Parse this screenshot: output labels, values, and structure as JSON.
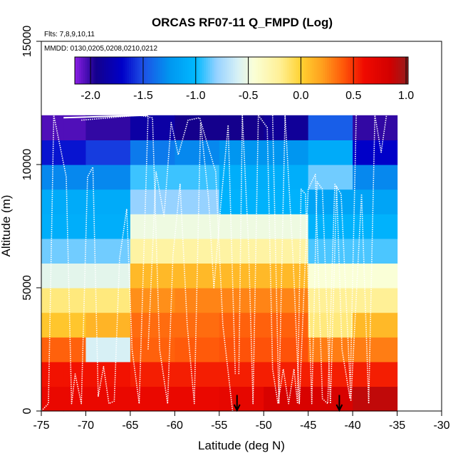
{
  "chart_data": {
    "type": "heatmap",
    "title": "ORCAS RF07-11 Q_FMPD (Log)",
    "notes": [
      "Flts: 7,8,9,10,11",
      "MMDD: 0130,0205,0208,0210,0212"
    ],
    "xlabel": "Latitude (deg N)",
    "ylabel": "Altitude (m)",
    "xlim": [
      -75,
      -30
    ],
    "ylim": [
      0,
      15000
    ],
    "x_ticks": [
      -75,
      -70,
      -65,
      -60,
      -55,
      -50,
      -45,
      -40,
      -35,
      -30
    ],
    "x_tick_labels": [
      "-75",
      "-70",
      "-65",
      "-60",
      "-55",
      "-50",
      "-45",
      "-40",
      "-35",
      "-30"
    ],
    "y_ticks": [
      0,
      5000,
      10000,
      15000
    ],
    "y_tick_labels": [
      "0",
      "5000",
      "10000",
      "15000"
    ],
    "colorbar": {
      "range": [
        -2.15,
        1.02
      ],
      "ticks": [
        -2.0,
        -1.5,
        -1.0,
        -0.5,
        0.0,
        0.5,
        1.0
      ],
      "tick_labels": [
        "-2.0",
        "-1.5",
        "-1.0",
        "-0.5",
        "0.0",
        "0.5",
        "1.0"
      ]
    },
    "x_edges": [
      -75,
      -72.5,
      -70,
      -65,
      -60,
      -55,
      -50,
      -45,
      -40,
      -35
    ],
    "y_edges": [
      0,
      1000,
      2000,
      3000,
      4000,
      5000,
      6000,
      7000,
      8000,
      9000,
      10000,
      11000,
      12000
    ],
    "cell_values": [
      [
        0.65,
        0.65,
        0.65,
        0.65,
        0.65,
        0.68,
        0.8,
        0.8,
        0.9
      ],
      [
        0.58,
        0.58,
        0.58,
        0.55,
        0.55,
        0.55,
        0.55,
        0.55,
        0.55
      ],
      [
        0.38,
        0.38,
        -0.6,
        0.38,
        0.4,
        0.42,
        0.42,
        0.3,
        0.3
      ],
      [
        0.05,
        0.05,
        0.12,
        0.35,
        0.35,
        0.38,
        0.38,
        -0.15,
        0.1
      ],
      [
        -0.15,
        -0.15,
        -0.15,
        0.25,
        0.28,
        0.28,
        0.28,
        -0.2,
        -0.2
      ],
      [
        -0.55,
        -0.55,
        -0.55,
        0.1,
        0.1,
        0.1,
        0.1,
        -0.45,
        -0.45
      ],
      [
        -0.85,
        -0.85,
        -0.85,
        -0.25,
        -0.25,
        -0.25,
        -0.25,
        -0.9,
        -0.9
      ],
      [
        -1.08,
        -1.08,
        -1.08,
        -0.5,
        -0.5,
        -0.5,
        -0.5,
        -1.05,
        -1.05
      ],
      [
        -1.1,
        -1.1,
        -1.1,
        -0.8,
        -0.8,
        -1.05,
        -1.05,
        -1.15,
        -1.15
      ],
      [
        -1.3,
        -1.3,
        -1.3,
        -0.92,
        -0.92,
        -1.08,
        -1.08,
        -0.85,
        -1.3
      ],
      [
        -1.65,
        -1.65,
        -1.55,
        -1.35,
        -1.3,
        -1.25,
        -1.25,
        -1.1,
        -1.7
      ],
      [
        -2.05,
        -2.05,
        -2.0,
        -1.85,
        -1.95,
        -1.95,
        -1.9,
        -1.45,
        -2.0
      ]
    ],
    "markers": [
      {
        "type": "down-arrow",
        "x": -53
      },
      {
        "type": "down-arrow",
        "x": -41.5
      }
    ]
  }
}
